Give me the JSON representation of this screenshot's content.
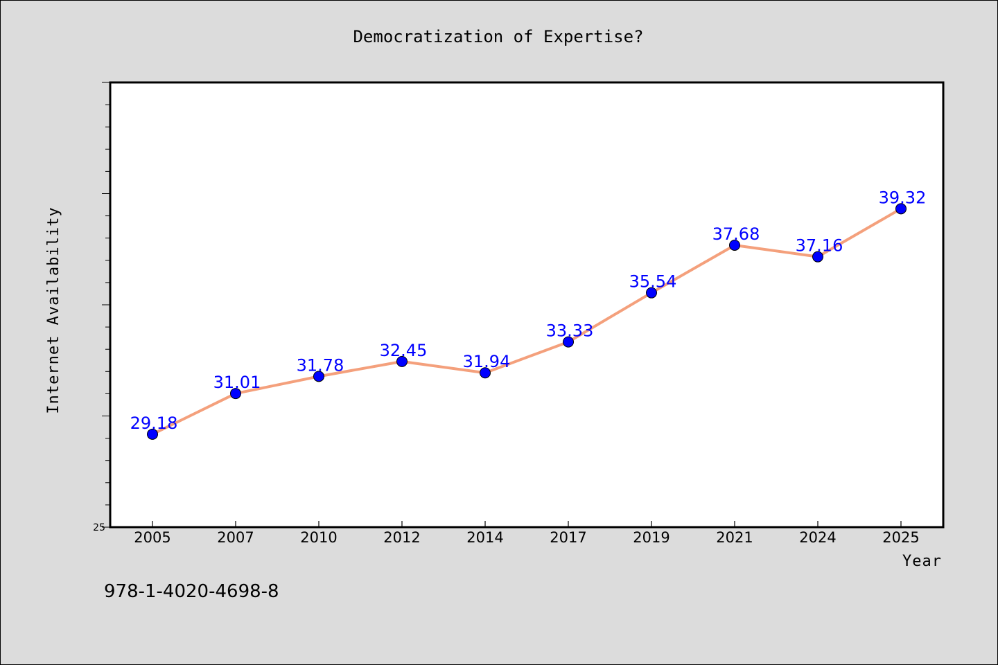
{
  "chart_data": {
    "type": "line",
    "title": "Democratization of Expertise?",
    "xlabel": "Year",
    "ylabel": "Internet Availability",
    "categories": [
      "2005",
      "2007",
      "2010",
      "2012",
      "2014",
      "2017",
      "2019",
      "2021",
      "2024",
      "2025"
    ],
    "series": [
      {
        "values": [
          29.18,
          31.01,
          31.78,
          32.45,
          31.94,
          33.33,
          35.54,
          37.68,
          37.16,
          39.32
        ],
        "labels": [
          "29.18",
          "31.01",
          "31.78",
          "32.45",
          "31.94",
          "33.33",
          "35.54",
          "37.68",
          "37.16",
          "39.32"
        ],
        "line_color": "#f4a07c",
        "marker_color": "#0000ff"
      }
    ],
    "ylim": [
      25,
      45
    ],
    "yticks_labeled": [
      "25"
    ],
    "grid": false,
    "legend": "none"
  },
  "footer_text": "978-1-4020-4698-8",
  "colors": {
    "background": "#dcdcdc",
    "plot_background": "#ffffff",
    "line": "#f4a07c",
    "marker": "#0000ff",
    "data_label": "#0000ff"
  }
}
